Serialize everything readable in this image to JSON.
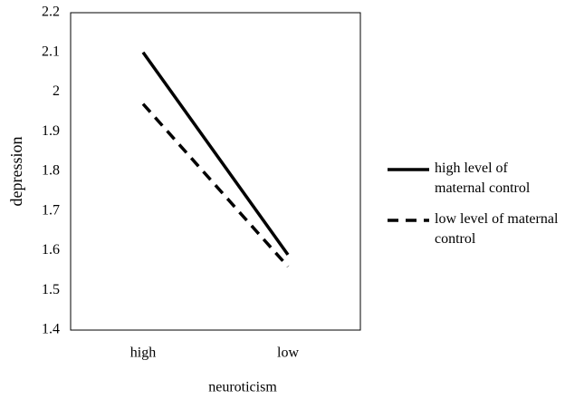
{
  "chart_data": {
    "type": "line",
    "x_label": "neuroticism",
    "y_label": "depression",
    "categories": [
      "high",
      "low"
    ],
    "series": [
      {
        "name": "high level of maternal control",
        "color": "#000000",
        "dash": "solid",
        "values": [
          2.1,
          1.59
        ]
      },
      {
        "name": "low level of maternal control",
        "color": "#000000",
        "dash": "dashed",
        "values": [
          1.97,
          1.56
        ]
      }
    ],
    "ylim": [
      1.4,
      2.2
    ],
    "yticks": [
      1.4,
      1.5,
      1.6,
      1.7,
      1.8,
      1.9,
      2,
      2.1,
      2.2
    ],
    "grid": false,
    "legend": "right"
  }
}
